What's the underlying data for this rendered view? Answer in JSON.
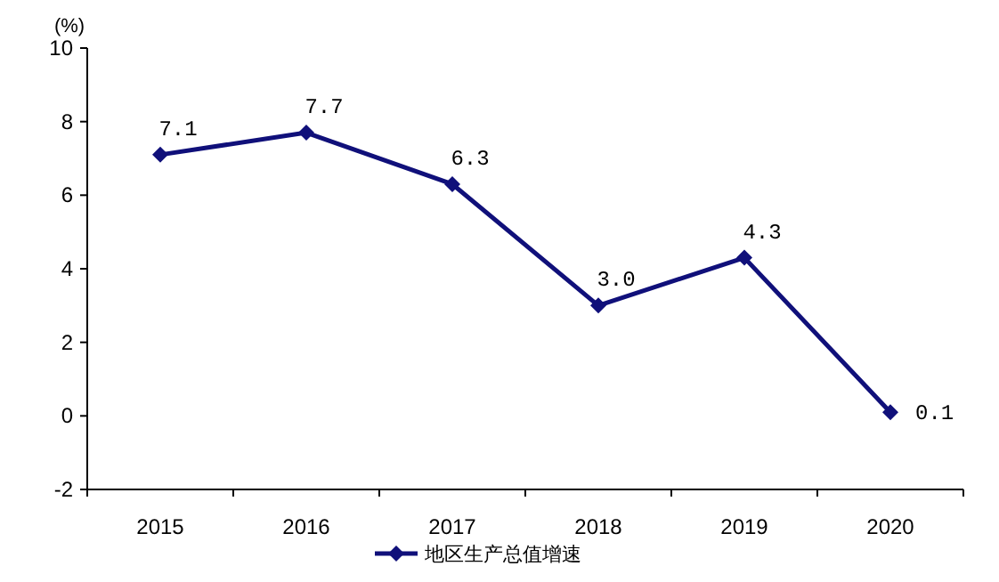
{
  "chart_data": {
    "type": "line",
    "ylabel": "(%)",
    "categories": [
      "2015",
      "2016",
      "2017",
      "2018",
      "2019",
      "2020"
    ],
    "series": [
      {
        "name": "地区生产总值增速",
        "color": "#10107a",
        "values": [
          7.1,
          7.7,
          6.3,
          3.0,
          4.3,
          0.1
        ],
        "value_labels": [
          "7.1",
          "7.7",
          "6.3",
          "3.0",
          "4.3",
          "0.1"
        ]
      }
    ],
    "ylim": [
      -2,
      10
    ],
    "yticks": [
      -2,
      0,
      2,
      4,
      6,
      8,
      10
    ],
    "legend": "bottom",
    "marker": "diamond",
    "grid": false
  }
}
